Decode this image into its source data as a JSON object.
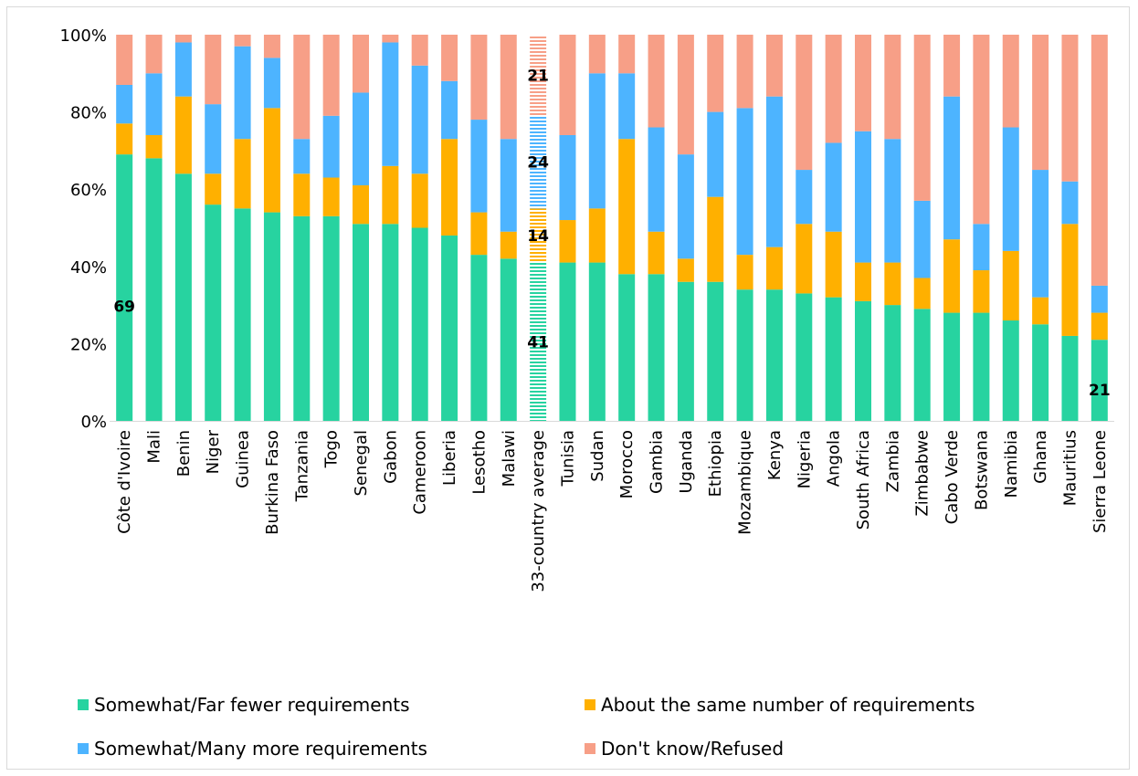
{
  "chart_data": {
    "type": "bar",
    "stacked": true,
    "ylim": [
      0,
      100
    ],
    "yticks": [
      "0%",
      "20%",
      "40%",
      "60%",
      "80%",
      "100%"
    ],
    "categories": [
      "Côte d'Ivoire",
      "Mali",
      "Benin",
      "Niger",
      "Guinea",
      "Burkina Faso",
      "Tanzania",
      "Togo",
      "Senegal",
      "Gabon",
      "Cameroon",
      "Liberia",
      "Lesotho",
      "Malawi",
      "33-country average",
      "Tunisia",
      "Sudan",
      "Morocco",
      "Gambia",
      "Uganda",
      "Ethiopia",
      "Mozambique",
      "Kenya",
      "Nigeria",
      "Angola",
      "South Africa",
      "Zambia",
      "Zimbabwe",
      "Cabo Verde",
      "Botswana",
      "Namibia",
      "Ghana",
      "Mauritius",
      "Sierra Leone"
    ],
    "series": [
      {
        "name": "Somewhat/Far fewer requirements",
        "color": "#27d3a0",
        "values": [
          69,
          68,
          64,
          56,
          55,
          54,
          53,
          53,
          51,
          51,
          50,
          48,
          43,
          42,
          41,
          41,
          41,
          38,
          38,
          36,
          36,
          34,
          34,
          33,
          32,
          31,
          30,
          29,
          28,
          28,
          26,
          25,
          22,
          21
        ]
      },
      {
        "name": "About the same number of requirements",
        "color": "#ffb000",
        "values": [
          8,
          6,
          20,
          8,
          18,
          27,
          11,
          10,
          10,
          15,
          14,
          25,
          11,
          7,
          14,
          11,
          14,
          35,
          11,
          6,
          22,
          9,
          11,
          18,
          17,
          10,
          11,
          8,
          19,
          11,
          18,
          7,
          29,
          7
        ]
      },
      {
        "name": "Somewhat/Many more requirements",
        "color": "#4db4ff",
        "values": [
          10,
          16,
          14,
          18,
          24,
          13,
          9,
          16,
          24,
          32,
          28,
          15,
          24,
          24,
          24,
          22,
          35,
          17,
          27,
          27,
          22,
          38,
          39,
          14,
          23,
          34,
          32,
          20,
          37,
          12,
          32,
          33,
          11,
          7
        ]
      },
      {
        "name": "Don't know/Refused",
        "color": "#f79f87",
        "values": [
          13,
          10,
          2,
          18,
          3,
          6,
          27,
          21,
          15,
          2,
          8,
          12,
          22,
          27,
          21,
          26,
          10,
          10,
          24,
          31,
          20,
          19,
          16,
          35,
          28,
          25,
          27,
          43,
          16,
          49,
          24,
          35,
          38,
          65
        ]
      }
    ],
    "highlight_category": "33-country average",
    "data_labels": [
      {
        "category": "Côte d'Ivoire",
        "series": 0,
        "text": "69"
      },
      {
        "category": "33-country average",
        "series": 0,
        "text": "41"
      },
      {
        "category": "33-country average",
        "series": 1,
        "text": "14"
      },
      {
        "category": "33-country average",
        "series": 2,
        "text": "24"
      },
      {
        "category": "33-country average",
        "series": 3,
        "text": "21"
      },
      {
        "category": "Sierra Leone",
        "series": 0,
        "text": "21"
      }
    ],
    "legend_position": "bottom"
  }
}
